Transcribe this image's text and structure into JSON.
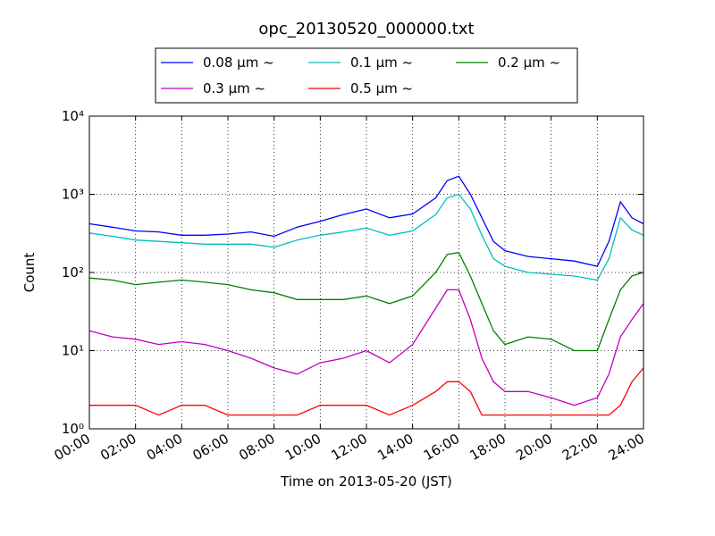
{
  "chart_data": {
    "type": "line",
    "title": "opc_20130520_000000.txt",
    "x_label": "Time on 2013-05-20 (JST)",
    "y_label": "Count",
    "yscale": "log",
    "grid": true,
    "legend": "upper center",
    "xlim": [
      0,
      24
    ],
    "xticks": [
      {
        "value": 0,
        "label": "00:00"
      },
      {
        "value": 2,
        "label": "02:00"
      },
      {
        "value": 4,
        "label": "04:00"
      },
      {
        "value": 6,
        "label": "06:00"
      },
      {
        "value": 8,
        "label": "08:00"
      },
      {
        "value": 10,
        "label": "10:00"
      },
      {
        "value": 12,
        "label": "12:00"
      },
      {
        "value": 14,
        "label": "14:00"
      },
      {
        "value": 16,
        "label": "16:00"
      },
      {
        "value": 18,
        "label": "18:00"
      },
      {
        "value": 20,
        "label": "20:00"
      },
      {
        "value": 22,
        "label": "22:00"
      },
      {
        "value": 24,
        "label": "24:00"
      }
    ],
    "ylim": [
      1,
      10000
    ],
    "yticks": [
      {
        "value": 1,
        "label": "10⁰"
      },
      {
        "value": 10,
        "label": "10¹"
      },
      {
        "value": 100,
        "label": "10²"
      },
      {
        "value": 1000,
        "label": "10³"
      },
      {
        "value": 10000,
        "label": "10⁴"
      }
    ],
    "x": [
      0,
      1,
      2,
      3,
      4,
      5,
      6,
      7,
      8,
      9,
      10,
      11,
      12,
      13,
      14,
      15,
      15.5,
      16,
      16.5,
      17,
      17.5,
      18,
      19,
      20,
      21,
      22,
      22.5,
      23,
      23.5,
      24
    ],
    "series": [
      {
        "name": "0.08 μm ~",
        "color": "#0000ff",
        "values": [
          420,
          380,
          340,
          330,
          300,
          300,
          310,
          330,
          290,
          380,
          450,
          550,
          650,
          500,
          560,
          900,
          1500,
          1700,
          1000,
          500,
          250,
          190,
          160,
          150,
          140,
          120,
          250,
          800,
          500,
          420
        ]
      },
      {
        "name": "0.1 μm ~",
        "color": "#00bfbf",
        "values": [
          320,
          290,
          260,
          250,
          240,
          230,
          230,
          230,
          210,
          260,
          300,
          330,
          370,
          300,
          340,
          550,
          900,
          1000,
          650,
          300,
          150,
          120,
          100,
          95,
          90,
          80,
          150,
          500,
          350,
          300
        ]
      },
      {
        "name": "0.2 μm ~",
        "color": "#008000",
        "values": [
          85,
          80,
          70,
          75,
          80,
          75,
          70,
          60,
          55,
          45,
          45,
          45,
          50,
          40,
          50,
          100,
          170,
          180,
          90,
          40,
          18,
          12,
          15,
          14,
          10,
          10,
          25,
          60,
          90,
          100
        ]
      },
      {
        "name": "0.3 μm ~",
        "color": "#bf00bf",
        "values": [
          18,
          15,
          14,
          12,
          13,
          12,
          10,
          8,
          6,
          5,
          7,
          8,
          10,
          7,
          12,
          35,
          60,
          60,
          25,
          8,
          4,
          3,
          3,
          2.5,
          2,
          2.5,
          5,
          15,
          25,
          40
        ]
      },
      {
        "name": "0.5 μm ~",
        "color": "#ff0000",
        "values": [
          2,
          2,
          2,
          1.5,
          2,
          2,
          1.5,
          1.5,
          1.5,
          1.5,
          2,
          2,
          2,
          1.5,
          2,
          3,
          4,
          4,
          3,
          1.5,
          1.5,
          1.5,
          1.5,
          1.5,
          1.5,
          1.5,
          1.5,
          2,
          4,
          6
        ]
      }
    ]
  }
}
